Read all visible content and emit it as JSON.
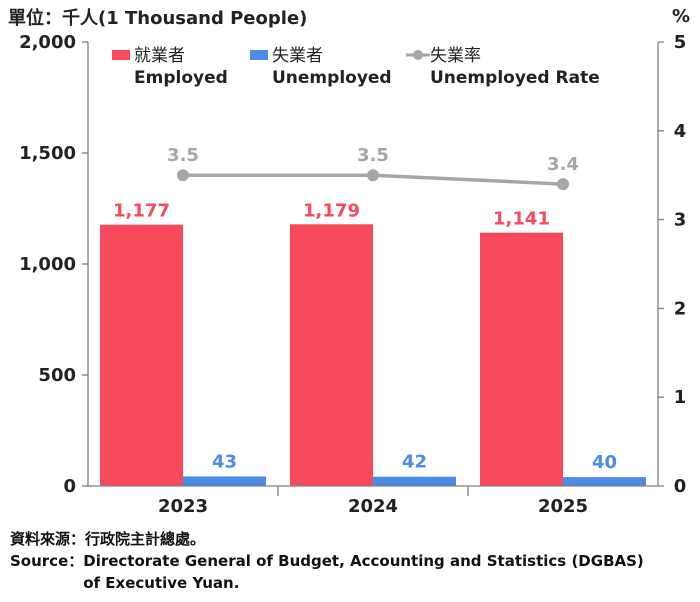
{
  "unit_label": "單位：千人(1 Thousand People)",
  "right_unit": "%",
  "source": {
    "zh_label": "資料來源：",
    "zh_text": "行政院主計總處。",
    "en_label": "Source：",
    "en_text": "Directorate General of Budget, Accounting and Statistics (DGBAS) of Executive Yuan."
  },
  "colors": {
    "employed": "#f74a5c",
    "unemployed": "#4a8ce8",
    "rate": "#a6a6a6",
    "axis": "#7f7f7f",
    "text": "#222222"
  },
  "chart_data": {
    "type": "bar",
    "categories": [
      "2023",
      "2024",
      "2025"
    ],
    "series": [
      {
        "name": "就業者\nEmployed",
        "values": [
          1177,
          1179,
          1141
        ],
        "labels": [
          "1,177",
          "1,179",
          "1,141"
        ],
        "axis": "left"
      },
      {
        "name": "失業者\nUnemployed",
        "values": [
          43,
          42,
          40
        ],
        "labels": [
          "43",
          "42",
          "40"
        ],
        "axis": "left"
      },
      {
        "name": "失業率\nUnemployed Rate",
        "type": "line",
        "values": [
          3.5,
          3.5,
          3.4
        ],
        "labels": [
          "3.5",
          "3.5",
          "3.4"
        ],
        "axis": "right"
      }
    ],
    "ylim": [
      0,
      2000
    ],
    "yticks": [
      "0",
      "500",
      "1,000",
      "1,500",
      "2,000"
    ],
    "y2lim": [
      0,
      5
    ],
    "y2ticks": [
      "0",
      "1",
      "2",
      "3",
      "4",
      "5"
    ],
    "legend_position": "top",
    "grid": false
  }
}
